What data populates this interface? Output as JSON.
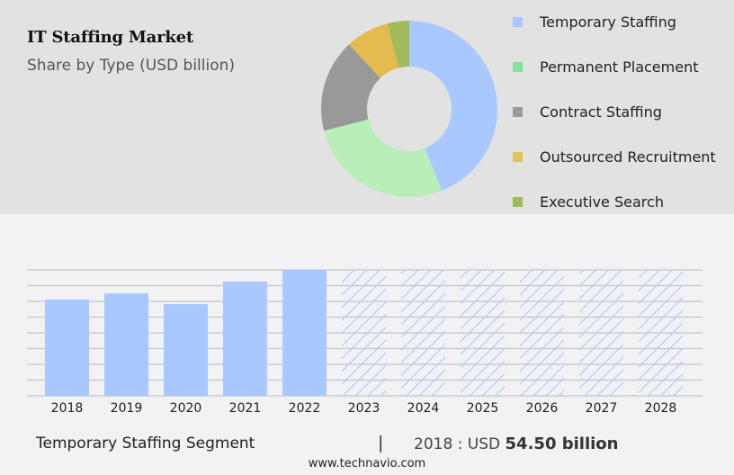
{
  "header": {
    "title": "IT Staffing Market",
    "subtitle": "Share by Type (USD billion)"
  },
  "legend": [
    {
      "label": "Temporary Staffing",
      "color": "#a8c8ff"
    },
    {
      "label": "Permanent Placement",
      "color": "#7ee49a"
    },
    {
      "label": "Contract Staffing",
      "color": "#999999"
    },
    {
      "label": "Outsourced Recruitment",
      "color": "#dfc457"
    },
    {
      "label": "Executive Search",
      "color": "#9fba5a"
    }
  ],
  "footer": {
    "segment": "Temporary Staffing Segment",
    "separator": "|",
    "value_prefix": "2018 : USD ",
    "value_bold": "54.50 billion",
    "url": "www.technavio.com"
  },
  "chart_data": [
    {
      "type": "pie",
      "title": "IT Staffing Market",
      "subtitle": "Share by Type (USD billion)",
      "donut": true,
      "categories": [
        "Temporary Staffing",
        "Permanent Placement",
        "Contract Staffing",
        "Outsourced Recruitment",
        "Executive Search"
      ],
      "values": [
        44,
        27,
        17,
        8,
        4
      ],
      "colors": [
        "#a8c8ff",
        "#b9eeb9",
        "#999999",
        "#e5bb50",
        "#a0ba5c"
      ],
      "legend_position": "right"
    },
    {
      "type": "bar",
      "title": "Temporary Staffing Segment",
      "categories": [
        "2018",
        "2019",
        "2020",
        "2021",
        "2022",
        "2023",
        "2024",
        "2025",
        "2026",
        "2027",
        "2028"
      ],
      "values": [
        54.5,
        58.0,
        51.9,
        64.7,
        71.3,
        null,
        null,
        null,
        null,
        null,
        null
      ],
      "forecast_years": [
        "2023",
        "2024",
        "2025",
        "2026",
        "2027",
        "2028"
      ],
      "forecast_style": "hatched",
      "annotation": "2018 : USD 54.50 billion",
      "xlabel": "",
      "ylabel": "",
      "grid": true,
      "y_axis_labels_visible": false,
      "ylim": [
        0,
        71.3
      ],
      "bar_color": "#a8c8ff"
    }
  ]
}
